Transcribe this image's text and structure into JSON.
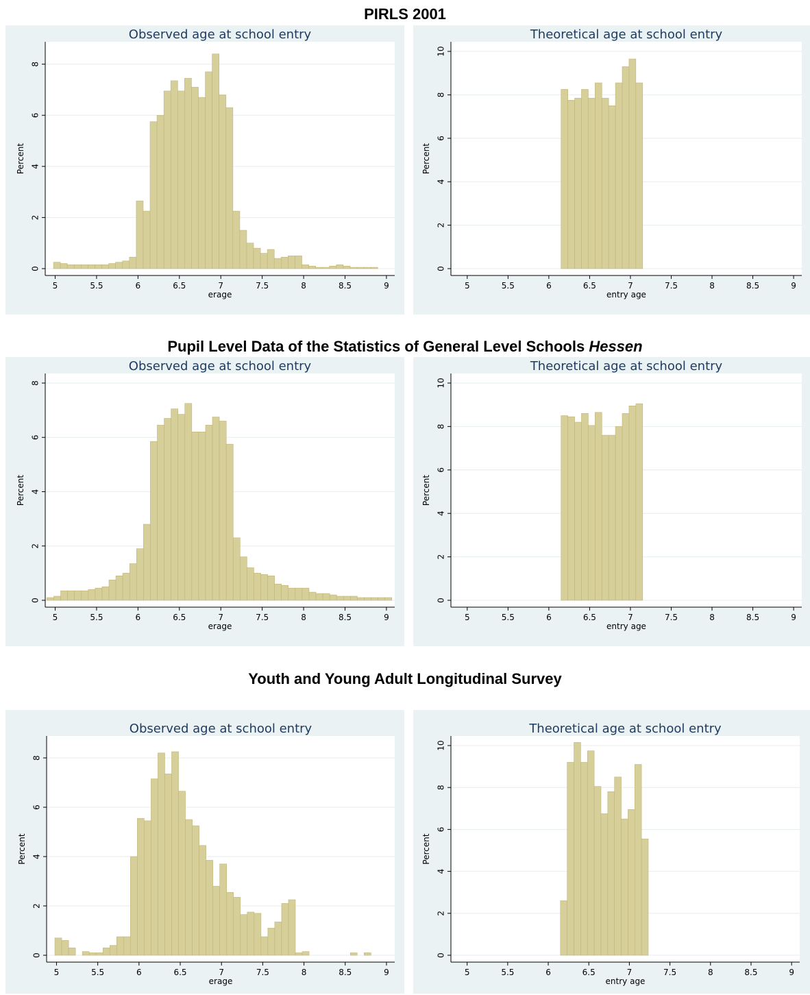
{
  "titles": {
    "s1": "PIRLS 2001",
    "s2_main": "Pupil Level Data of the Statistics of General Level Schools ",
    "s2_ital": "Hessen",
    "s3": "Youth and Young Adult Longitudinal Survey"
  },
  "colors": {
    "panel_bg": "#eaf2f3",
    "plot_bg": "#ffffff",
    "bar_fill": "#d7cf9a",
    "bar_stroke": "#bfb57a",
    "grid": "#e6eeee",
    "title": "#1e3a5f"
  },
  "chart_data": [
    {
      "type": "bar",
      "title": "Observed age at school entry",
      "xlabel": "erage",
      "ylabel": "Percent",
      "xlim": [
        4.88,
        9.1
      ],
      "ylim": [
        0,
        8.5
      ],
      "xticks": [
        "5",
        "5.5",
        "6",
        "6.5",
        "7",
        "7.5",
        "8",
        "8.5",
        "9"
      ],
      "yticks": [
        "0",
        "2",
        "4",
        "6",
        "8"
      ],
      "grid": true,
      "bin_start": 4.98,
      "bin_width": 0.0833,
      "values": [
        0.25,
        0.2,
        0.15,
        0.15,
        0.15,
        0.15,
        0.15,
        0.15,
        0.2,
        0.25,
        0.3,
        0.45,
        2.65,
        2.25,
        5.75,
        6.0,
        6.95,
        7.35,
        6.95,
        7.45,
        7.1,
        6.7,
        7.7,
        8.4,
        6.8,
        6.3,
        2.25,
        1.5,
        1.0,
        0.8,
        0.6,
        0.75,
        0.4,
        0.45,
        0.5,
        0.5,
        0.15,
        0.1,
        0.05,
        0.05,
        0.1,
        0.15,
        0.1,
        0.05,
        0.05,
        0.05,
        0.05
      ]
    },
    {
      "type": "bar",
      "title": "Theoretical age at school entry",
      "xlabel": "entry age",
      "ylabel": "Percent",
      "xlim": [
        4.8,
        9.1
      ],
      "ylim": [
        0,
        10
      ],
      "xticks": [
        "5",
        "5.5",
        "6",
        "6.5",
        "7",
        "7.5",
        "8",
        "8.5",
        "9"
      ],
      "yticks": [
        "0",
        "2",
        "4",
        "6",
        "8",
        "10"
      ],
      "grid": true,
      "bin_start": 6.15,
      "bin_width": 0.0833,
      "values": [
        8.25,
        7.75,
        7.85,
        8.25,
        7.85,
        8.55,
        7.85,
        7.5,
        8.55,
        9.3,
        9.65,
        8.55
      ]
    },
    {
      "type": "bar",
      "title": "Observed age at school entry",
      "xlabel": "erage",
      "ylabel": "Percent",
      "xlim": [
        4.88,
        9.1
      ],
      "ylim": [
        0,
        8
      ],
      "xticks": [
        "5",
        "5.5",
        "6",
        "6.5",
        "7",
        "7.5",
        "8",
        "8.5",
        "9"
      ],
      "yticks": [
        "0",
        "2",
        "4",
        "6",
        "8"
      ],
      "grid": true,
      "bin_start": 4.9,
      "bin_width": 0.0833,
      "values": [
        0.1,
        0.15,
        0.35,
        0.35,
        0.35,
        0.35,
        0.4,
        0.45,
        0.5,
        0.75,
        0.9,
        1.0,
        1.35,
        1.9,
        2.8,
        5.85,
        6.45,
        6.7,
        7.05,
        6.85,
        7.25,
        6.2,
        6.2,
        6.45,
        6.75,
        6.6,
        5.75,
        2.3,
        1.6,
        1.2,
        1.0,
        0.95,
        0.9,
        0.6,
        0.55,
        0.45,
        0.45,
        0.45,
        0.3,
        0.25,
        0.25,
        0.2,
        0.15,
        0.15,
        0.15,
        0.1,
        0.1,
        0.1,
        0.1,
        0.1
      ]
    },
    {
      "type": "bar",
      "title": "Theoretical age at school entry",
      "xlabel": "entry age",
      "ylabel": "Percent",
      "xlim": [
        4.8,
        9.1
      ],
      "ylim": [
        0,
        10
      ],
      "xticks": [
        "5",
        "5.5",
        "6",
        "6.5",
        "7",
        "7.5",
        "8",
        "8.5",
        "9"
      ],
      "yticks": [
        "0",
        "2",
        "4",
        "6",
        "8",
        "10"
      ],
      "grid": true,
      "bin_start": 6.15,
      "bin_width": 0.0833,
      "values": [
        8.5,
        8.45,
        8.2,
        8.6,
        8.05,
        8.65,
        7.6,
        7.6,
        8.0,
        8.6,
        8.95,
        9.05
      ]
    },
    {
      "type": "bar",
      "title": "Observed age at school entry",
      "xlabel": "erage",
      "ylabel": "Percent",
      "xlim": [
        4.88,
        9.1
      ],
      "ylim": [
        0,
        8.5
      ],
      "xticks": [
        "5",
        "5.5",
        "6",
        "6.5",
        "7",
        "7.5",
        "8",
        "8.5",
        "9"
      ],
      "yticks": [
        "0",
        "2",
        "4",
        "6",
        "8"
      ],
      "grid": true,
      "bin_start": 4.98,
      "bin_width": 0.0833,
      "values": [
        0.7,
        0.6,
        0.3,
        0,
        0.15,
        0.1,
        0.1,
        0.3,
        0.4,
        0.75,
        0.75,
        4.0,
        5.55,
        5.45,
        7.15,
        8.2,
        7.35,
        8.25,
        6.65,
        5.5,
        5.25,
        4.45,
        3.85,
        2.8,
        3.7,
        2.55,
        2.35,
        1.65,
        1.75,
        1.7,
        0.75,
        1.1,
        1.35,
        2.1,
        2.25,
        0.1,
        0.15,
        0,
        0,
        0,
        0,
        0,
        0,
        0.1,
        0,
        0.1
      ]
    },
    {
      "type": "bar",
      "title": "Theoretical age at school entry",
      "xlabel": "entry age",
      "ylabel": "Percent",
      "xlim": [
        4.8,
        9.1
      ],
      "ylim": [
        0,
        10
      ],
      "xticks": [
        "5",
        "5.5",
        "6",
        "6.5",
        "7",
        "7.5",
        "8",
        "8.5",
        "9"
      ],
      "yticks": [
        "0",
        "2",
        "4",
        "6",
        "8",
        "10"
      ],
      "grid": true,
      "bin_start": 6.15,
      "bin_width": 0.0833,
      "values": [
        2.6,
        9.2,
        10.15,
        9.2,
        9.75,
        8.05,
        6.75,
        7.8,
        8.5,
        6.5,
        6.95,
        9.1,
        5.55
      ]
    }
  ]
}
